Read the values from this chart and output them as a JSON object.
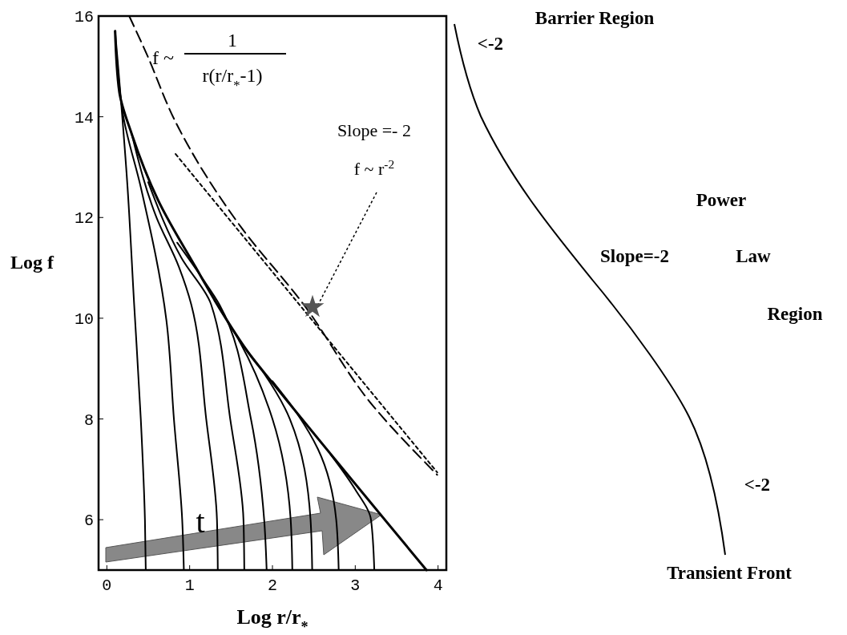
{
  "chart_data": [
    {
      "type": "line",
      "xlabel": "Log r/r$_{*}$",
      "ylabel": "Log f",
      "xlim": [
        -0.1,
        4.1
      ],
      "ylim": [
        5,
        16
      ],
      "xticks": [
        0,
        1,
        2,
        3,
        4
      ],
      "yticks": [
        6,
        8,
        10,
        12,
        14,
        16
      ],
      "series": [
        {
          "color": "#000000",
          "line_style": "solid",
          "x": [
            0.1,
            0.15,
            0.3,
            0.62,
            1.07,
            1.36,
            1.74,
            2.0,
            3.86
          ],
          "values": [
            15.7,
            14.5,
            13.66,
            12.34,
            11.02,
            10.2,
            9.25,
            8.72,
            5.0
          ]
        },
        {
          "color": "#000000",
          "line_style": "solid",
          "x": [
            0.1,
            0.25,
            0.33,
            0.41,
            0.46,
            0.47
          ],
          "values": [
            15.7,
            12.6,
            10.27,
            8,
            6,
            5
          ]
        },
        {
          "color": "#000000",
          "line_style": "solid",
          "x": [
            0.12,
            0.2,
            0.41,
            0.72,
            0.81,
            0.91,
            0.93
          ],
          "values": [
            15.2,
            14,
            12.6,
            9.95,
            8,
            6,
            5
          ]
        },
        {
          "color": "#000000",
          "line_style": "solid",
          "x": [
            0.3,
            0.6,
            0.87,
            1.02,
            1.2,
            1.33,
            1.34
          ],
          "values": [
            13.66,
            12,
            11.02,
            10.27,
            8,
            6,
            5
          ]
        },
        {
          "color": "#000000",
          "line_style": "solid",
          "x": [
            0.5,
            0.9,
            1.26,
            1.49,
            1.65,
            1.66
          ],
          "values": [
            12.7,
            11.2,
            10.27,
            8,
            6,
            5
          ]
        },
        {
          "color": "#000000",
          "line_style": "solid",
          "x": [
            0.85,
            1.15,
            1.36,
            1.74,
            1.9,
            1.93
          ],
          "values": [
            11.5,
            10.8,
            10.27,
            8,
            6,
            5
          ]
        },
        {
          "color": "#000000",
          "line_style": "solid",
          "x": [
            1.3,
            1.6,
            2.0,
            2.22,
            2.24
          ],
          "values": [
            10.35,
            9.55,
            8,
            6,
            5
          ]
        },
        {
          "color": "#000000",
          "line_style": "solid",
          "x": [
            1.6,
            1.9,
            2.21,
            2.46,
            2.48
          ],
          "values": [
            9.55,
            8.9,
            8,
            6,
            5
          ]
        },
        {
          "color": "#000000",
          "line_style": "solid",
          "x": [
            2.0,
            2.3,
            2.55,
            2.77,
            2.8
          ],
          "values": [
            8.75,
            8.1,
            7.4,
            6,
            5
          ]
        },
        {
          "color": "#000000",
          "line_style": "solid",
          "x": [
            2.7,
            3.0,
            3.19,
            3.23
          ],
          "values": [
            7.3,
            6.6,
            6,
            5
          ]
        },
        {
          "color": "#000000",
          "line_style": "dashed",
          "x": [
            0.27,
            0.48,
            0.82,
            1.62,
            2.36,
            3.22,
            3.99
          ],
          "values": [
            16,
            15.25,
            13.93,
            11.81,
            10.31,
            8.25,
            6.89
          ]
        },
        {
          "color": "#000000",
          "line_style": "dotted",
          "x": [
            0.83,
            3.99
          ],
          "values": [
            13.26,
            6.94
          ]
        }
      ],
      "annotations": [
        "f ~",
        "1",
        "r(r/r$_{*}$-1)",
        "Slope =- 2",
        "f ~ r$^{-2}$",
        "t"
      ]
    },
    {
      "type": "other",
      "annotations": [
        "Barrier Region",
        "<-2",
        "Power",
        "Slope=-2",
        "Law",
        "Region",
        "<-2",
        "Transient Front"
      ]
    }
  ]
}
